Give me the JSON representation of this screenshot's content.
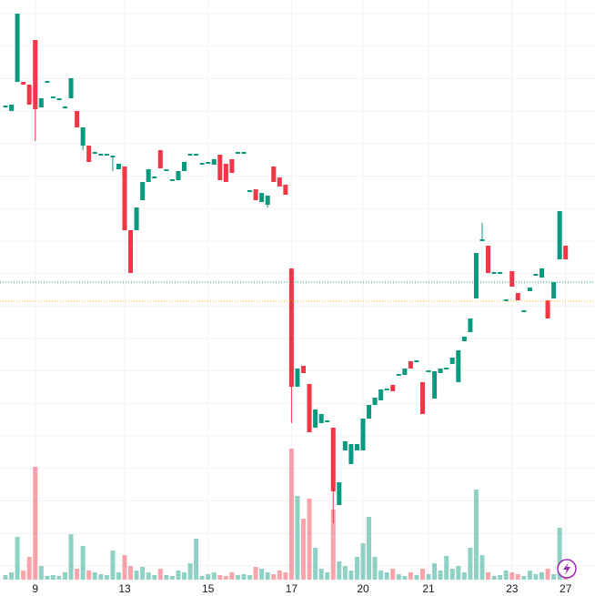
{
  "chart_data": {
    "type": "candlestick",
    "categories": [
      null,
      null,
      null,
      null,
      null,
      "9",
      null,
      null,
      null,
      null,
      null,
      null,
      null,
      null,
      null,
      null,
      null,
      null,
      null,
      null,
      "13",
      null,
      null,
      null,
      null,
      null,
      null,
      null,
      null,
      null,
      null,
      null,
      null,
      null,
      "15",
      null,
      null,
      null,
      null,
      null,
      null,
      null,
      null,
      null,
      null,
      null,
      null,
      null,
      "17",
      null,
      null,
      null,
      null,
      null,
      null,
      null,
      null,
      null,
      null,
      null,
      "20",
      null,
      null,
      null,
      null,
      null,
      null,
      null,
      null,
      null,
      null,
      "21",
      null,
      null,
      null,
      null,
      null,
      null,
      null,
      null,
      null,
      null,
      null,
      null,
      null,
      "23",
      null,
      null,
      null,
      null,
      null,
      null,
      null,
      null,
      "27"
    ],
    "open": [
      532,
      528,
      560,
      560,
      557,
      606,
      532,
      559,
      542,
      540,
      531,
      542,
      528,
      490,
      490,
      481,
      479,
      479,
      477,
      464,
      467,
      397,
      397,
      430,
      450,
      454,
      485,
      462,
      451,
      452,
      462,
      479,
      479,
      469,
      470,
      469,
      480,
      470,
      475,
      481,
      481,
      439,
      442,
      428,
      425,
      467,
      455,
      447,
      355,
      225,
      248,
      228,
      180,
      185,
      186,
      180,
      95,
      155,
      140,
      155,
      155,
      190,
      205,
      210,
      221,
      227,
      237,
      238,
      253,
      252,
      230,
      241,
      212,
      240,
      244,
      250,
      230,
      275,
      285,
      322,
      385,
      380,
      349,
      349,
      319,
      352,
      328,
      307,
      330,
      347,
      345,
      320,
      322,
      365,
      380
    ],
    "high": [
      534,
      535,
      635,
      560,
      557,
      606,
      542,
      561,
      544,
      542,
      533,
      564,
      528,
      510,
      490,
      483,
      481,
      481,
      479,
      470,
      467,
      397,
      422,
      450,
      464,
      456,
      485,
      464,
      453,
      462,
      472,
      481,
      481,
      471,
      472,
      475,
      480,
      470,
      475,
      483,
      483,
      441,
      442,
      438,
      435,
      467,
      455,
      447,
      355,
      245,
      248,
      228,
      200,
      195,
      188,
      180,
      120,
      165,
      162,
      162,
      190,
      205,
      213,
      222,
      223,
      227,
      239,
      245,
      253,
      254,
      230,
      243,
      242,
      245,
      246,
      257,
      265,
      280,
      300,
      372,
      405,
      380,
      351,
      351,
      321,
      352,
      328,
      309,
      334,
      349,
      355,
      320,
      340,
      418,
      380
    ],
    "low": [
      532,
      528,
      560,
      557,
      535,
      495,
      532,
      559,
      542,
      540,
      531,
      542,
      510,
      485,
      472,
      481,
      479,
      479,
      462,
      464,
      397,
      350,
      397,
      430,
      450,
      454,
      465,
      462,
      451,
      452,
      462,
      479,
      479,
      469,
      470,
      469,
      452,
      450,
      460,
      481,
      481,
      439,
      430,
      428,
      422,
      450,
      445,
      436,
      185,
      225,
      240,
      175,
      180,
      185,
      186,
      75,
      95,
      155,
      140,
      155,
      155,
      190,
      205,
      210,
      221,
      220,
      237,
      238,
      245,
      252,
      195,
      241,
      212,
      240,
      244,
      250,
      230,
      275,
      285,
      322,
      385,
      350,
      349,
      349,
      319,
      335,
      320,
      307,
      330,
      347,
      345,
      300,
      322,
      365,
      365
    ],
    "close": [
      534,
      535,
      635,
      557,
      535,
      530,
      542,
      561,
      544,
      542,
      533,
      564,
      510,
      510,
      472,
      483,
      481,
      481,
      479,
      470,
      397,
      350,
      422,
      450,
      464,
      456,
      465,
      464,
      453,
      462,
      472,
      481,
      481,
      471,
      472,
      475,
      452,
      450,
      460,
      483,
      483,
      441,
      430,
      438,
      435,
      450,
      445,
      436,
      225,
      245,
      240,
      175,
      200,
      195,
      188,
      110,
      120,
      165,
      162,
      162,
      190,
      205,
      213,
      222,
      223,
      220,
      239,
      245,
      245,
      254,
      195,
      243,
      242,
      245,
      246,
      257,
      265,
      280,
      300,
      372,
      387,
      350,
      351,
      351,
      321,
      335,
      320,
      309,
      334,
      349,
      355,
      300,
      340,
      418,
      365
    ],
    "volume": [
      5,
      8,
      47,
      10,
      25,
      124,
      15,
      4,
      5,
      4,
      8,
      50,
      12,
      37,
      10,
      8,
      6,
      5,
      32,
      8,
      27,
      15,
      10,
      14,
      8,
      5,
      12,
      5,
      4,
      10,
      8,
      18,
      45,
      4,
      6,
      8,
      5,
      4,
      8,
      5,
      6,
      5,
      14,
      12,
      8,
      6,
      10,
      8,
      144,
      92,
      67,
      89,
      35,
      12,
      8,
      77,
      20,
      15,
      10,
      25,
      40,
      69,
      25,
      10,
      8,
      12,
      6,
      4,
      8,
      5,
      12,
      6,
      18,
      10,
      26,
      12,
      15,
      8,
      35,
      99,
      27,
      8,
      4,
      5,
      10,
      8,
      6,
      4,
      10,
      6,
      8,
      12,
      6,
      57,
      8
    ],
    "up_color": "#089981",
    "down_color": "#f23645",
    "ylim": [
      0,
      650
    ],
    "volume_lim": [
      0,
      637
    ],
    "price_lines": [
      {
        "value": 340,
        "color": "#089981"
      },
      {
        "value": 319,
        "color": "#f7a600"
      }
    ],
    "grid": true
  }
}
